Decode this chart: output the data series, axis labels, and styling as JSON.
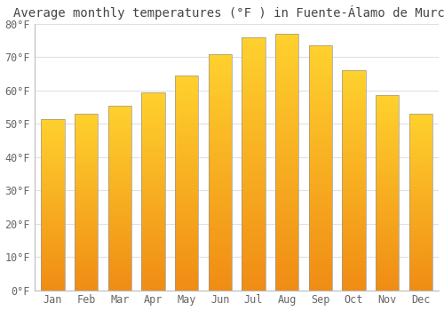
{
  "title": "Average monthly temperatures (°F ) in Fuente-Álamo de Murcia",
  "months": [
    "Jan",
    "Feb",
    "Mar",
    "Apr",
    "May",
    "Jun",
    "Jul",
    "Aug",
    "Sep",
    "Oct",
    "Nov",
    "Dec"
  ],
  "values": [
    51.5,
    53.0,
    55.5,
    59.5,
    64.5,
    71.0,
    76.0,
    77.0,
    73.5,
    66.0,
    58.5,
    53.0
  ],
  "bar_color_top": "#FFD040",
  "bar_color_bottom": "#F0900A",
  "bar_edge_color": "#999999",
  "background_color": "#FFFFFF",
  "plot_bg_color": "#FFFFFF",
  "grid_color": "#E0E0E0",
  "text_color": "#666666",
  "title_color": "#444444",
  "ylim": [
    0,
    80
  ],
  "yticks": [
    0,
    10,
    20,
    30,
    40,
    50,
    60,
    70,
    80
  ],
  "ytick_labels": [
    "0°F",
    "10°F",
    "20°F",
    "30°F",
    "40°F",
    "50°F",
    "60°F",
    "70°F",
    "80°F"
  ],
  "title_fontsize": 10,
  "tick_fontsize": 8.5,
  "font_family": "monospace"
}
